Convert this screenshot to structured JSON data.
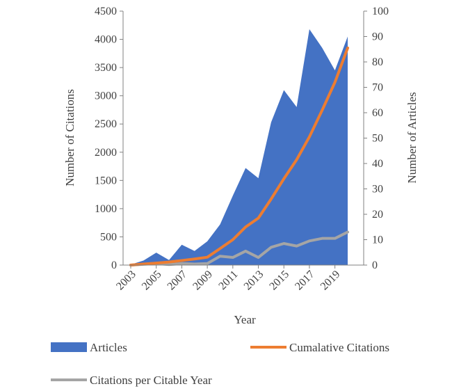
{
  "chart_data": {
    "type": "area",
    "x": [
      2003,
      2004,
      2005,
      2006,
      2007,
      2008,
      2009,
      2010,
      2011,
      2012,
      2013,
      2014,
      2015,
      2016,
      2017,
      2018,
      2019,
      2020
    ],
    "x_tick_labels": [
      "2003",
      "2005",
      "2007",
      "2009",
      "2011",
      "2013",
      "2015",
      "2017",
      "2019"
    ],
    "xlabel": "Year",
    "ylabel_left": "Number of Citations",
    "ylabel_right": "Number of Articles",
    "ylim_left": [
      0,
      4500
    ],
    "ylim_right": [
      0,
      100
    ],
    "yticks_left": [
      "0",
      "500",
      "1000",
      "1500",
      "2000",
      "2500",
      "3000",
      "3500",
      "4000",
      "4500"
    ],
    "yticks_right": [
      "0",
      "10",
      "20",
      "30",
      "40",
      "50",
      "60",
      "70",
      "80",
      "90",
      "100"
    ],
    "grid": false,
    "legend_position": "bottom",
    "series": [
      {
        "name": "Articles",
        "kind": "area",
        "axis": "left",
        "color": "#4472C4",
        "values": [
          10,
          80,
          220,
          90,
          360,
          250,
          420,
          720,
          1230,
          1720,
          1540,
          2530,
          3100,
          2800,
          4180,
          3850,
          3450,
          4050
        ]
      },
      {
        "name": "Cumalative Citations",
        "kind": "line",
        "axis": "right",
        "color": "#ED7D31",
        "values": [
          0,
          0.4,
          0.8,
          1.2,
          1.8,
          2.4,
          3.1,
          6.5,
          10,
          15,
          18.5,
          26,
          34,
          41.5,
          50.5,
          61,
          72,
          85.5
        ]
      },
      {
        "name": "Citations per Citable Year",
        "kind": "line",
        "axis": "right",
        "color": "#A5A5A5",
        "values": [
          0,
          0.3,
          0.6,
          0.2,
          0.6,
          0.4,
          0.6,
          3.5,
          3,
          5.5,
          3,
          7,
          8.5,
          7.5,
          9.5,
          10.5,
          10.5,
          13
        ]
      }
    ]
  }
}
